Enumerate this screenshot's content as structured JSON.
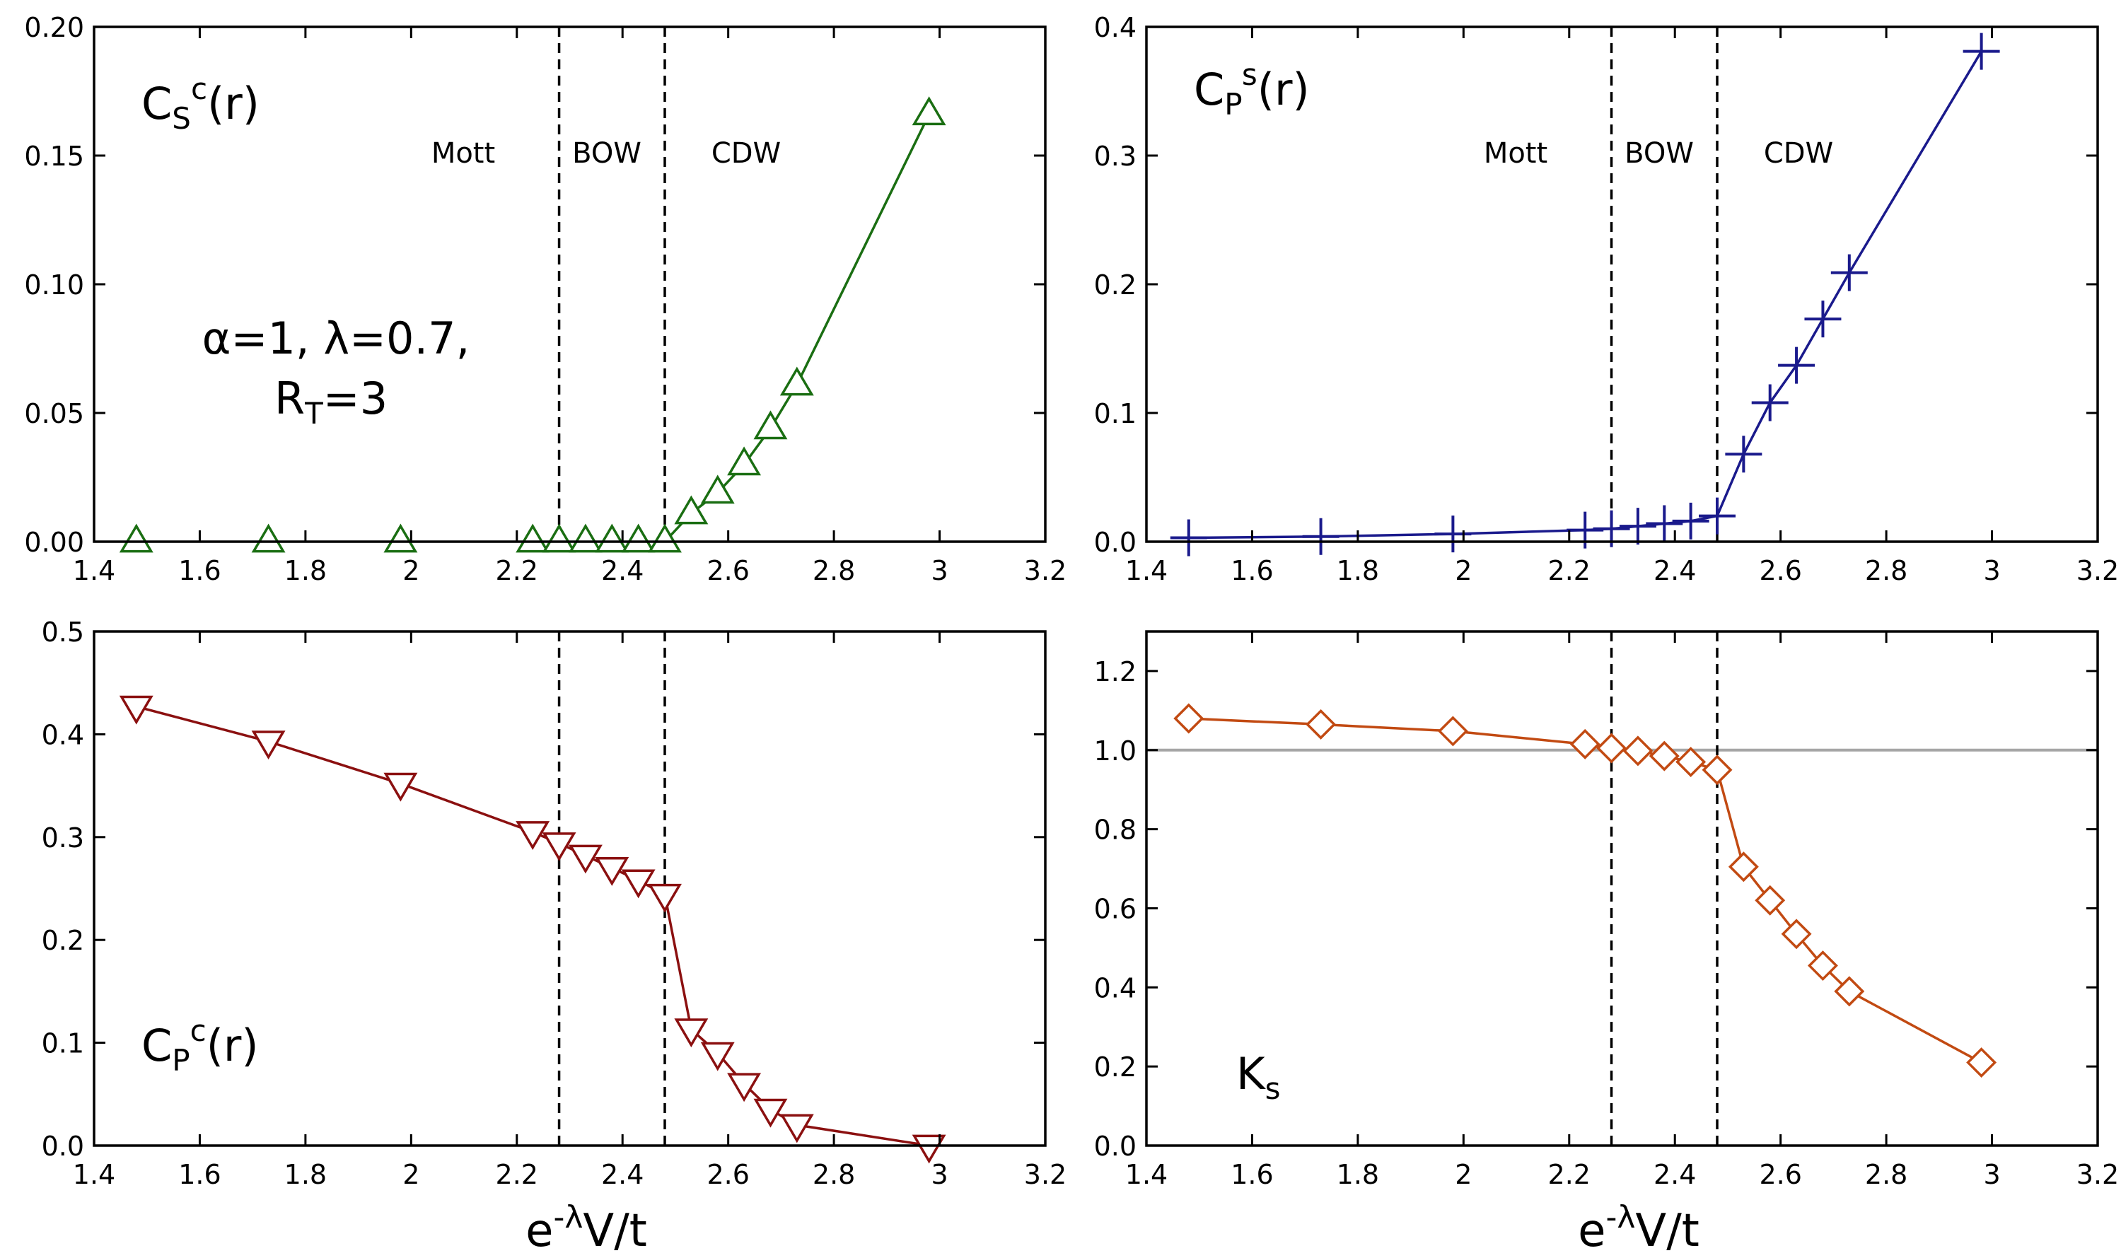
{
  "figure": {
    "shared_xlabel": {
      "base": "e",
      "sup": "-λ",
      "rest": "V/t"
    }
  },
  "chart_data": [
    {
      "id": "cs",
      "type": "line",
      "marker": "triangle-up",
      "color": "#1a6e12",
      "label": {
        "main": "C",
        "sub": "S",
        "sup": "c",
        "tail": "(r)"
      },
      "params": {
        "line1": "α=1, λ=0.7,",
        "line2_main": "R",
        "line2_sub": "T",
        "line2_tail": "=3"
      },
      "phases": [
        "Mott",
        "BOW",
        "CDW"
      ],
      "phase_boundaries": [
        2.28,
        2.48
      ],
      "xlim": [
        1.4,
        3.2
      ],
      "ylim": [
        0,
        0.2
      ],
      "xticks": [
        1.4,
        1.6,
        1.8,
        2,
        2.2,
        2.4,
        2.6,
        2.8,
        3,
        3.2
      ],
      "xtick_labels": [
        "1.4",
        "1.6",
        "1.8",
        "2",
        "2.2",
        "2.4",
        "2.6",
        "2.8",
        "3",
        "3.2"
      ],
      "yticks": [
        0,
        0.05,
        0.1,
        0.15,
        0.2
      ],
      "ytick_labels": [
        "0.00",
        "0.05",
        "0.10",
        "0.15",
        "0.20"
      ],
      "x": [
        1.48,
        1.73,
        1.98,
        2.23,
        2.28,
        2.33,
        2.38,
        2.43,
        2.48,
        2.53,
        2.58,
        2.63,
        2.68,
        2.73,
        2.98
      ],
      "y": [
        0,
        0,
        0,
        0,
        0,
        0,
        0,
        0,
        0,
        0.011,
        0.019,
        0.03,
        0.044,
        0.061,
        0.166
      ],
      "line_from_index": 8
    },
    {
      "id": "cps",
      "type": "line",
      "marker": "plus",
      "color": "#1a1a8c",
      "label": {
        "main": "C",
        "sub": "P",
        "sup": "s",
        "tail": "(r)"
      },
      "phases": [
        "Mott",
        "BOW",
        "CDW"
      ],
      "phase_boundaries": [
        2.28,
        2.48
      ],
      "xlim": [
        1.4,
        3.2
      ],
      "ylim": [
        0,
        0.4
      ],
      "xticks": [
        1.4,
        1.6,
        1.8,
        2,
        2.2,
        2.4,
        2.6,
        2.8,
        3,
        3.2
      ],
      "xtick_labels": [
        "1.4",
        "1.6",
        "1.8",
        "2",
        "2.2",
        "2.4",
        "2.6",
        "2.8",
        "3",
        "3.2"
      ],
      "yticks": [
        0,
        0.1,
        0.2,
        0.3,
        0.4
      ],
      "ytick_labels": [
        "0.0",
        "0.1",
        "0.2",
        "0.3",
        "0.4"
      ],
      "x": [
        1.48,
        1.73,
        1.98,
        2.23,
        2.28,
        2.33,
        2.38,
        2.43,
        2.48,
        2.53,
        2.58,
        2.63,
        2.68,
        2.73,
        2.98
      ],
      "y": [
        0.003,
        0.004,
        0.006,
        0.009,
        0.01,
        0.012,
        0.014,
        0.016,
        0.02,
        0.068,
        0.108,
        0.137,
        0.173,
        0.209,
        0.381
      ],
      "line_from_index": 0
    },
    {
      "id": "cpc",
      "type": "line",
      "marker": "triangle-down",
      "color": "#8b1010",
      "label": {
        "main": "C",
        "sub": "P",
        "sup": "c",
        "tail": "(r)"
      },
      "phase_boundaries": [
        2.28,
        2.48
      ],
      "xlim": [
        1.4,
        3.2
      ],
      "ylim": [
        0,
        0.5
      ],
      "xticks": [
        1.4,
        1.6,
        1.8,
        2,
        2.2,
        2.4,
        2.6,
        2.8,
        3,
        3.2
      ],
      "xtick_labels": [
        "1.4",
        "1.6",
        "1.8",
        "2",
        "2.2",
        "2.4",
        "2.6",
        "2.8",
        "3",
        "3.2"
      ],
      "yticks": [
        0,
        0.1,
        0.2,
        0.3,
        0.4,
        0.5
      ],
      "ytick_labels": [
        "0.0",
        "0.1",
        "0.2",
        "0.3",
        "0.4",
        "0.5"
      ],
      "x": [
        1.48,
        1.73,
        1.98,
        2.23,
        2.28,
        2.33,
        2.38,
        2.43,
        2.48,
        2.53,
        2.58,
        2.63,
        2.68,
        2.73,
        2.98
      ],
      "y": [
        0.427,
        0.393,
        0.352,
        0.305,
        0.294,
        0.282,
        0.27,
        0.258,
        0.244,
        0.113,
        0.09,
        0.06,
        0.035,
        0.02,
        0.0
      ],
      "line_from_index": 0
    },
    {
      "id": "ks",
      "type": "line",
      "marker": "diamond",
      "color": "#c24a12",
      "label": {
        "main": "K",
        "sub": "s"
      },
      "phase_boundaries": [
        2.28,
        2.48
      ],
      "reference_line": 1.0,
      "reference_color": "#a6a6a6",
      "xlim": [
        1.4,
        3.2
      ],
      "ylim": [
        0,
        1.3
      ],
      "xticks": [
        1.4,
        1.6,
        1.8,
        2,
        2.2,
        2.4,
        2.6,
        2.8,
        3,
        3.2
      ],
      "xtick_labels": [
        "1.4",
        "1.6",
        "1.8",
        "2",
        "2.2",
        "2.4",
        "2.6",
        "2.8",
        "3",
        "3.2"
      ],
      "yticks": [
        0,
        0.2,
        0.4,
        0.6,
        0.8,
        1.0,
        1.2
      ],
      "ytick_labels": [
        "0.0",
        "0.2",
        "0.4",
        "0.6",
        "0.8",
        "1.0",
        "1.2"
      ],
      "x": [
        1.48,
        1.73,
        1.98,
        2.23,
        2.28,
        2.33,
        2.38,
        2.43,
        2.48,
        2.53,
        2.58,
        2.63,
        2.68,
        2.73,
        2.98
      ],
      "y": [
        1.08,
        1.065,
        1.048,
        1.015,
        1.005,
        0.998,
        0.985,
        0.97,
        0.95,
        0.705,
        0.62,
        0.535,
        0.455,
        0.39,
        0.21
      ],
      "line_from_index": 0
    }
  ]
}
